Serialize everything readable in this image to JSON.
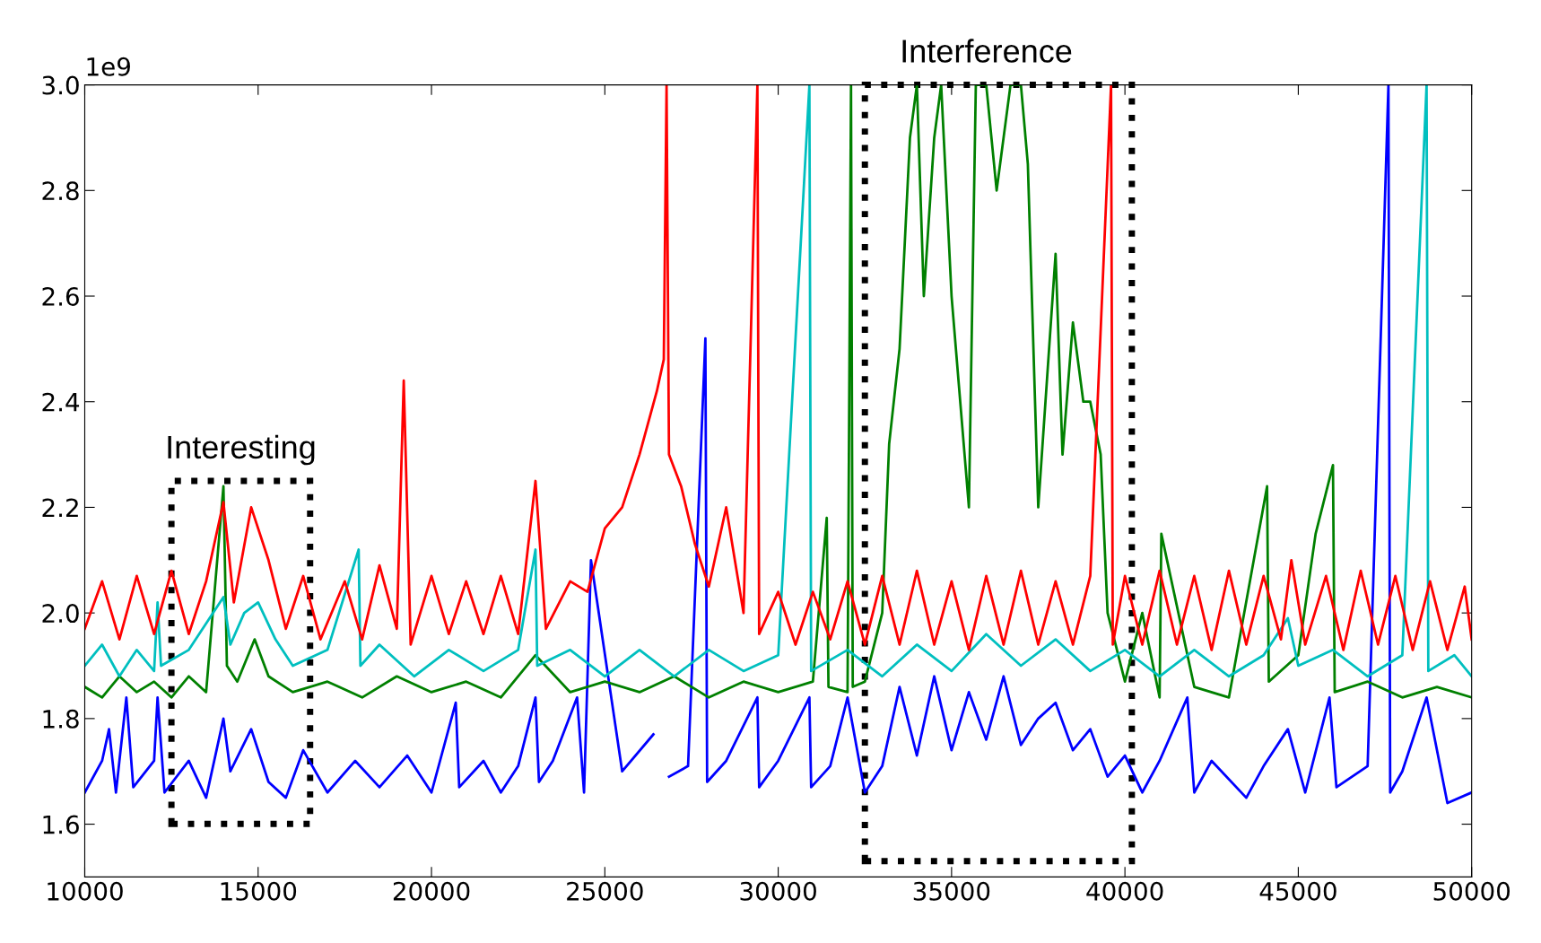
{
  "chart_data": {
    "type": "line",
    "xlim": [
      10000,
      50000
    ],
    "ylim": [
      1.5,
      3.0
    ],
    "xticks": [
      10000,
      15000,
      20000,
      25000,
      30000,
      35000,
      40000,
      45000,
      50000
    ],
    "yticks": [
      1.6,
      1.8,
      {
        "value": 2.0,
        "label": "2.0"
      },
      2.2,
      2.4,
      2.6,
      2.8,
      {
        "value": 3.0,
        "label": "3.0"
      }
    ],
    "grid": false,
    "legend": false,
    "marker": "none",
    "line_style": "solid",
    "annotations": [
      "1e9",
      "Interesting",
      "Interference"
    ],
    "series": [
      {
        "color": "#0000ff",
        "x": [
          10000,
          10500,
          10700,
          10900,
          11200,
          11400,
          12000,
          12100,
          12300,
          13000,
          13500,
          14000,
          14200,
          14800,
          15300,
          15800,
          16300,
          17000,
          17800,
          18500,
          19300,
          20000,
          20700,
          20800,
          21500,
          22000,
          22500,
          23000,
          23100,
          23500,
          24200,
          24400,
          24600,
          25500,
          26400,
          26800,
          26850,
          27400,
          27900,
          27950,
          28500,
          29400,
          29450,
          30000,
          30900,
          30950,
          31500,
          32000,
          32500,
          33000,
          33500,
          34000,
          34500,
          35000,
          35500,
          36000,
          36500,
          37000,
          37500,
          38000,
          38500,
          39000,
          39500,
          40000,
          40500,
          41000,
          41800,
          42000,
          42500,
          43500,
          44000,
          44700,
          45200,
          45900,
          46100,
          47000,
          47600,
          47650,
          48000,
          48700,
          49300,
          50000
        ],
        "values": [
          1.66,
          1.72,
          1.78,
          1.66,
          1.84,
          1.67,
          1.72,
          1.84,
          1.66,
          1.72,
          1.65,
          1.8,
          1.7,
          1.78,
          1.68,
          1.65,
          1.74,
          1.66,
          1.72,
          1.67,
          1.73,
          1.66,
          1.83,
          1.67,
          1.72,
          1.66,
          1.71,
          1.84,
          1.68,
          1.72,
          1.84,
          1.66,
          2.1,
          1.7,
          1.77,
          null,
          1.69,
          1.71,
          2.52,
          1.68,
          1.72,
          1.84,
          1.67,
          1.72,
          1.84,
          1.67,
          1.71,
          1.84,
          1.66,
          1.71,
          1.86,
          1.73,
          1.88,
          1.74,
          1.85,
          1.76,
          1.88,
          1.75,
          1.8,
          1.83,
          1.74,
          1.78,
          1.69,
          1.73,
          1.66,
          1.72,
          1.84,
          1.66,
          1.72,
          1.65,
          1.71,
          1.78,
          1.66,
          1.84,
          1.67,
          1.71,
          3.0,
          1.66,
          1.7,
          1.84,
          1.64,
          1.66
        ]
      },
      {
        "color": "#008000",
        "x": [
          10000,
          10500,
          11000,
          11500,
          12000,
          12500,
          13000,
          13500,
          14000,
          14100,
          14400,
          14900,
          15300,
          16000,
          17000,
          18000,
          19000,
          20000,
          21000,
          22000,
          23000,
          24000,
          25000,
          26000,
          27000,
          28000,
          29000,
          30000,
          31000,
          31400,
          31450,
          32000,
          32100,
          32150,
          32500,
          33000,
          33200,
          33500,
          33800,
          34000,
          34200,
          34500,
          34700,
          35000,
          35500,
          35700,
          36000,
          36300,
          36700,
          37000,
          37200,
          37500,
          38000,
          38200,
          38500,
          38800,
          39000,
          39300,
          39500,
          40000,
          40500,
          41000,
          41050,
          42000,
          43000,
          44100,
          44150,
          45000,
          45500,
          46000,
          46050,
          47000,
          48000,
          49000,
          50000
        ],
        "values": [
          1.86,
          1.84,
          1.88,
          1.85,
          1.87,
          1.84,
          1.88,
          1.85,
          2.24,
          1.9,
          1.87,
          1.95,
          1.88,
          1.85,
          1.87,
          1.84,
          1.88,
          1.85,
          1.87,
          1.84,
          1.92,
          1.85,
          1.87,
          1.85,
          1.88,
          1.84,
          1.87,
          1.85,
          1.87,
          2.18,
          1.86,
          1.85,
          3.0,
          1.86,
          1.87,
          2.0,
          2.32,
          2.5,
          2.9,
          3.0,
          2.6,
          2.9,
          3.0,
          2.6,
          2.2,
          3.0,
          3.0,
          2.8,
          3.0,
          3.0,
          2.85,
          2.2,
          2.68,
          2.3,
          2.55,
          2.4,
          2.4,
          2.3,
          2.0,
          1.87,
          2.0,
          1.84,
          2.15,
          1.86,
          1.84,
          2.24,
          1.87,
          1.92,
          2.15,
          2.28,
          1.85,
          1.87,
          1.84,
          1.86,
          1.84
        ]
      },
      {
        "color": "#00bfbf",
        "x": [
          10000,
          10500,
          11000,
          11500,
          12000,
          12100,
          12200,
          13000,
          14000,
          14200,
          14600,
          15000,
          15500,
          16000,
          17000,
          17900,
          17950,
          18500,
          19500,
          20500,
          21500,
          22500,
          23000,
          23050,
          24000,
          25000,
          26000,
          27000,
          28000,
          29000,
          30000,
          30900,
          30950,
          32000,
          33000,
          34000,
          35000,
          36000,
          37000,
          38000,
          39000,
          40000,
          41000,
          42000,
          43000,
          44000,
          44700,
          45000,
          46000,
          47000,
          48000,
          48700,
          48750,
          49500,
          50000
        ],
        "values": [
          1.9,
          1.94,
          1.88,
          1.93,
          1.89,
          2.02,
          1.9,
          1.93,
          2.03,
          1.94,
          2.0,
          2.02,
          1.95,
          1.9,
          1.93,
          2.12,
          1.9,
          1.94,
          1.88,
          1.93,
          1.89,
          1.93,
          2.12,
          1.9,
          1.93,
          1.88,
          1.93,
          1.88,
          1.93,
          1.89,
          1.92,
          3.0,
          1.89,
          1.93,
          1.88,
          1.94,
          1.89,
          1.96,
          1.9,
          1.95,
          1.89,
          1.93,
          1.88,
          1.93,
          1.88,
          1.92,
          1.99,
          1.9,
          1.93,
          1.88,
          1.92,
          3.0,
          1.89,
          1.92,
          1.88
        ]
      },
      {
        "color": "#ff0000",
        "x": [
          10000,
          10500,
          11000,
          11500,
          12000,
          12500,
          13000,
          13500,
          14000,
          14300,
          14800,
          15300,
          15800,
          16300,
          16800,
          17500,
          18000,
          18500,
          19000,
          19200,
          19400,
          20000,
          20500,
          21000,
          21500,
          22000,
          22500,
          23000,
          23300,
          24000,
          24500,
          25000,
          25500,
          26000,
          26500,
          26700,
          26780,
          26850,
          27200,
          27600,
          28000,
          28500,
          29000,
          29400,
          29450,
          30000,
          30500,
          31000,
          31500,
          32000,
          32500,
          33000,
          33500,
          34000,
          34500,
          35000,
          35500,
          36000,
          36500,
          37000,
          37500,
          38000,
          38500,
          39000,
          39600,
          39650,
          40000,
          40500,
          41000,
          41500,
          42000,
          42500,
          43000,
          43500,
          44000,
          44500,
          44800,
          45200,
          45800,
          46300,
          46800,
          47300,
          47800,
          48300,
          48800,
          49300,
          49800,
          50000
        ],
        "values": [
          1.97,
          2.06,
          1.95,
          2.07,
          1.96,
          2.08,
          1.96,
          2.06,
          2.21,
          2.02,
          2.2,
          2.1,
          1.97,
          2.07,
          1.95,
          2.06,
          1.95,
          2.09,
          1.97,
          2.44,
          1.94,
          2.07,
          1.96,
          2.06,
          1.96,
          2.07,
          1.96,
          2.25,
          1.97,
          2.06,
          2.04,
          2.16,
          2.2,
          2.3,
          2.42,
          2.48,
          3.0,
          2.3,
          2.24,
          2.13,
          2.05,
          2.2,
          2.0,
          3.0,
          1.96,
          2.04,
          1.94,
          2.04,
          1.95,
          2.06,
          1.94,
          2.07,
          1.94,
          2.08,
          1.94,
          2.06,
          1.93,
          2.07,
          1.94,
          2.08,
          1.94,
          2.06,
          1.94,
          2.07,
          3.0,
          1.94,
          2.07,
          1.94,
          2.08,
          1.94,
          2.07,
          1.93,
          2.08,
          1.94,
          2.07,
          1.95,
          2.1,
          1.94,
          2.07,
          1.93,
          2.08,
          1.94,
          2.07,
          1.93,
          2.06,
          1.93,
          2.05,
          1.95
        ]
      }
    ]
  }
}
